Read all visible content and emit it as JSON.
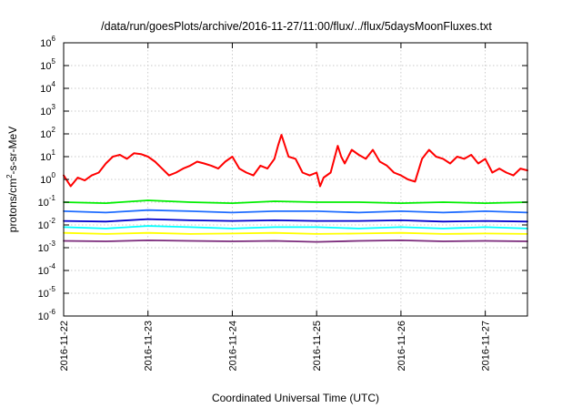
{
  "chart_data": {
    "type": "line",
    "title": "/data/run/goesPlots/archive/2016-11-27/11:00/flux/../flux/5daysMoonFluxes.txt",
    "xlabel": "Coordinated Universal Time (UTC)",
    "ylabel": {
      "prefix": "protons/cm",
      "superscript": "2",
      "suffix": "-s-sr-MeV"
    },
    "y_scale": "log",
    "ylim": [
      1e-06,
      1000000.0
    ],
    "y_ticks": [
      {
        "base": "10",
        "exp": "6",
        "value": 1000000.0
      },
      {
        "base": "10",
        "exp": "5",
        "value": 100000.0
      },
      {
        "base": "10",
        "exp": "4",
        "value": 10000.0
      },
      {
        "base": "10",
        "exp": "3",
        "value": 1000.0
      },
      {
        "base": "10",
        "exp": "2",
        "value": 100.0
      },
      {
        "base": "10",
        "exp": "1",
        "value": 10.0
      },
      {
        "base": "10",
        "exp": "0",
        "value": 1.0
      },
      {
        "base": "10",
        "exp": "-1",
        "value": 0.1
      },
      {
        "base": "10",
        "exp": "-2",
        "value": 0.01
      },
      {
        "base": "10",
        "exp": "-3",
        "value": 0.001
      },
      {
        "base": "10",
        "exp": "-4",
        "value": 0.0001
      },
      {
        "base": "10",
        "exp": "-5",
        "value": 1e-05
      },
      {
        "base": "10",
        "exp": "-6",
        "value": 1e-06
      }
    ],
    "x_ticks": [
      "2016-11-22",
      "2016-11-23",
      "2016-11-24",
      "2016-11-25",
      "2016-11-26",
      "2016-11-27"
    ],
    "xlim": [
      "2016-11-22T00:00",
      "2016-11-27T12:00"
    ],
    "grid": true,
    "series": [
      {
        "color": "#ff0000",
        "x": [
          "2016-11-22T00:00",
          "2016-11-22T02:00",
          "2016-11-22T04:00",
          "2016-11-22T06:00",
          "2016-11-22T08:00",
          "2016-11-22T10:00",
          "2016-11-22T12:00",
          "2016-11-22T14:00",
          "2016-11-22T16:00",
          "2016-11-22T18:00",
          "2016-11-22T20:00",
          "2016-11-22T22:00",
          "2016-11-23T00:00",
          "2016-11-23T02:00",
          "2016-11-23T04:00",
          "2016-11-23T06:00",
          "2016-11-23T08:00",
          "2016-11-23T10:00",
          "2016-11-23T12:00",
          "2016-11-23T14:00",
          "2016-11-23T16:00",
          "2016-11-23T18:00",
          "2016-11-23T20:00",
          "2016-11-23T22:00",
          "2016-11-24T00:00",
          "2016-11-24T02:00",
          "2016-11-24T04:00",
          "2016-11-24T06:00",
          "2016-11-24T08:00",
          "2016-11-24T10:00",
          "2016-11-24T12:00",
          "2016-11-24T13:00",
          "2016-11-24T14:00",
          "2016-11-24T15:00",
          "2016-11-24T16:00",
          "2016-11-24T18:00",
          "2016-11-24T20:00",
          "2016-11-24T22:00",
          "2016-11-25T00:00",
          "2016-11-25T01:00",
          "2016-11-25T02:00",
          "2016-11-25T04:00",
          "2016-11-25T06:00",
          "2016-11-25T07:00",
          "2016-11-25T08:00",
          "2016-11-25T10:00",
          "2016-11-25T12:00",
          "2016-11-25T14:00",
          "2016-11-25T16:00",
          "2016-11-25T18:00",
          "2016-11-25T20:00",
          "2016-11-25T22:00",
          "2016-11-26T00:00",
          "2016-11-26T02:00",
          "2016-11-26T04:00",
          "2016-11-26T06:00",
          "2016-11-26T08:00",
          "2016-11-26T10:00",
          "2016-11-26T12:00",
          "2016-11-26T14:00",
          "2016-11-26T16:00",
          "2016-11-26T18:00",
          "2016-11-26T20:00",
          "2016-11-26T22:00",
          "2016-11-27T00:00",
          "2016-11-27T02:00",
          "2016-11-27T04:00",
          "2016-11-27T06:00",
          "2016-11-27T08:00",
          "2016-11-27T10:00",
          "2016-11-27T12:00"
        ],
        "values": [
          1.5,
          0.5,
          1.2,
          0.9,
          1.5,
          2,
          5,
          10,
          12,
          8,
          14,
          13,
          10,
          6,
          3,
          1.5,
          2,
          3,
          4,
          6,
          5,
          4,
          3,
          6,
          10,
          3,
          2,
          1.5,
          4,
          3,
          8,
          30,
          90,
          30,
          10,
          8,
          2,
          1.5,
          2,
          0.5,
          1.2,
          2,
          30,
          10,
          5,
          20,
          12,
          8,
          20,
          6,
          4,
          2,
          1.5,
          1,
          0.8,
          8,
          20,
          10,
          8,
          5,
          10,
          8,
          12,
          5,
          8,
          2,
          3,
          2,
          1.5,
          3,
          2.5
        ]
      },
      {
        "color": "#00ee00",
        "x": [
          "2016-11-22T00:00",
          "2016-11-22T12:00",
          "2016-11-23T00:00",
          "2016-11-23T12:00",
          "2016-11-24T00:00",
          "2016-11-24T12:00",
          "2016-11-25T00:00",
          "2016-11-25T12:00",
          "2016-11-26T00:00",
          "2016-11-26T12:00",
          "2016-11-27T00:00",
          "2016-11-27T12:00"
        ],
        "values": [
          0.1,
          0.09,
          0.12,
          0.1,
          0.09,
          0.11,
          0.1,
          0.1,
          0.09,
          0.1,
          0.09,
          0.1
        ]
      },
      {
        "color": "#00ffff",
        "x": [
          "2016-11-22T00:00",
          "2016-11-22T12:00",
          "2016-11-23T00:00",
          "2016-11-23T12:00",
          "2016-11-24T00:00",
          "2016-11-24T12:00",
          "2016-11-25T00:00",
          "2016-11-25T12:00",
          "2016-11-26T00:00",
          "2016-11-26T12:00",
          "2016-11-27T00:00",
          "2016-11-27T12:00"
        ],
        "values": [
          0.008,
          0.007,
          0.009,
          0.008,
          0.007,
          0.008,
          0.008,
          0.007,
          0.008,
          0.007,
          0.008,
          0.007
        ]
      },
      {
        "color": "#1e6cff",
        "x": [
          "2016-11-22T00:00",
          "2016-11-22T12:00",
          "2016-11-23T00:00",
          "2016-11-23T12:00",
          "2016-11-24T00:00",
          "2016-11-24T12:00",
          "2016-11-25T00:00",
          "2016-11-25T12:00",
          "2016-11-26T00:00",
          "2016-11-26T12:00",
          "2016-11-27T00:00",
          "2016-11-27T12:00"
        ],
        "values": [
          0.04,
          0.035,
          0.045,
          0.04,
          0.035,
          0.04,
          0.04,
          0.035,
          0.04,
          0.035,
          0.04,
          0.035
        ]
      },
      {
        "color": "#0000cc",
        "x": [
          "2016-11-22T00:00",
          "2016-11-22T12:00",
          "2016-11-23T00:00",
          "2016-11-23T12:00",
          "2016-11-24T00:00",
          "2016-11-24T12:00",
          "2016-11-25T00:00",
          "2016-11-25T12:00",
          "2016-11-26T00:00",
          "2016-11-26T12:00",
          "2016-11-27T00:00",
          "2016-11-27T12:00"
        ],
        "values": [
          0.015,
          0.014,
          0.018,
          0.016,
          0.015,
          0.016,
          0.015,
          0.015,
          0.016,
          0.014,
          0.015,
          0.014
        ]
      },
      {
        "color": "#ffff00",
        "x": [
          "2016-11-22T00:00",
          "2016-11-22T12:00",
          "2016-11-23T00:00",
          "2016-11-23T12:00",
          "2016-11-24T00:00",
          "2016-11-24T12:00",
          "2016-11-25T00:00",
          "2016-11-25T12:00",
          "2016-11-26T00:00",
          "2016-11-26T12:00",
          "2016-11-27T00:00",
          "2016-11-27T12:00"
        ],
        "values": [
          0.0045,
          0.004,
          0.0045,
          0.004,
          0.0042,
          0.0045,
          0.004,
          0.0042,
          0.0045,
          0.004,
          0.0042,
          0.004
        ]
      },
      {
        "color": "#7b2a7b",
        "x": [
          "2016-11-22T00:00",
          "2016-11-22T12:00",
          "2016-11-23T00:00",
          "2016-11-23T12:00",
          "2016-11-24T00:00",
          "2016-11-24T12:00",
          "2016-11-25T00:00",
          "2016-11-25T12:00",
          "2016-11-26T00:00",
          "2016-11-26T12:00",
          "2016-11-27T00:00",
          "2016-11-27T12:00"
        ],
        "values": [
          0.002,
          0.0019,
          0.0021,
          0.002,
          0.0019,
          0.002,
          0.0018,
          0.002,
          0.0021,
          0.0019,
          0.002,
          0.0019
        ]
      }
    ]
  }
}
